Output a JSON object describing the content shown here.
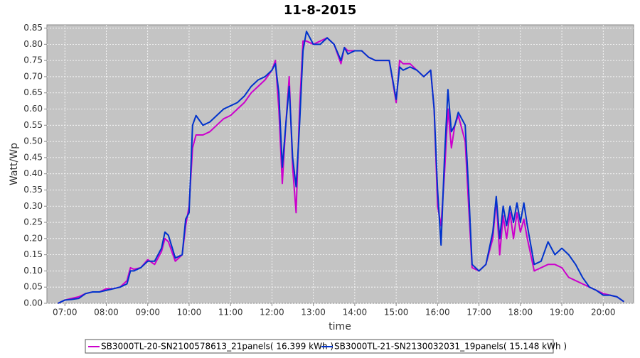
{
  "chart_data": {
    "type": "line",
    "title": "11-8-2015",
    "x_label": "time",
    "y_label": "Watt/Wp",
    "x": [
      "06:50",
      "07:00",
      "07:10",
      "07:20",
      "07:30",
      "07:40",
      "07:50",
      "08:00",
      "08:10",
      "08:20",
      "08:30",
      "08:35",
      "08:40",
      "08:50",
      "09:00",
      "09:10",
      "09:20",
      "09:25",
      "09:30",
      "09:40",
      "09:50",
      "09:55",
      "10:00",
      "10:05",
      "10:10",
      "10:20",
      "10:30",
      "10:40",
      "10:50",
      "11:00",
      "11:10",
      "11:20",
      "11:30",
      "11:40",
      "11:50",
      "12:00",
      "12:05",
      "12:10",
      "12:15",
      "12:20",
      "12:25",
      "12:30",
      "12:35",
      "12:40",
      "12:45",
      "12:50",
      "13:00",
      "13:10",
      "13:20",
      "13:30",
      "13:40",
      "13:45",
      "13:50",
      "14:00",
      "14:10",
      "14:20",
      "14:30",
      "14:40",
      "14:50",
      "15:00",
      "15:05",
      "15:10",
      "15:20",
      "15:30",
      "15:40",
      "15:50",
      "15:55",
      "16:00",
      "16:05",
      "16:10",
      "16:15",
      "16:20",
      "16:25",
      "16:30",
      "16:40",
      "16:45",
      "16:50",
      "17:00",
      "17:10",
      "17:20",
      "17:25",
      "17:30",
      "17:35",
      "17:40",
      "17:45",
      "17:50",
      "17:55",
      "18:00",
      "18:05",
      "18:10",
      "18:20",
      "18:30",
      "18:40",
      "18:50",
      "19:00",
      "19:10",
      "19:20",
      "19:30",
      "19:40",
      "19:50",
      "20:00",
      "20:10",
      "20:20",
      "20:30"
    ],
    "series": [
      {
        "name": "SB3000TL-20-SN2100578613_21panels( 16.399 kWh )",
        "color": "#cc00cc",
        "values": [
          0,
          0.01,
          0.015,
          0.02,
          0.03,
          0.035,
          0.035,
          0.045,
          0.045,
          0.05,
          0.07,
          0.11,
          0.105,
          0.11,
          0.135,
          0.12,
          0.16,
          0.2,
          0.19,
          0.13,
          0.15,
          0.24,
          0.3,
          0.48,
          0.52,
          0.52,
          0.53,
          0.55,
          0.57,
          0.58,
          0.6,
          0.62,
          0.65,
          0.67,
          0.69,
          0.72,
          0.75,
          0.6,
          0.37,
          0.55,
          0.7,
          0.42,
          0.28,
          0.6,
          0.81,
          0.81,
          0.8,
          0.81,
          0.82,
          0.8,
          0.74,
          0.79,
          0.78,
          0.78,
          0.78,
          0.76,
          0.75,
          0.75,
          0.75,
          0.62,
          0.75,
          0.74,
          0.74,
          0.72,
          0.7,
          0.72,
          0.6,
          0.3,
          0.24,
          0.4,
          0.6,
          0.48,
          0.55,
          0.58,
          0.5,
          0.3,
          0.11,
          0.1,
          0.12,
          0.2,
          0.32,
          0.15,
          0.27,
          0.2,
          0.28,
          0.2,
          0.28,
          0.22,
          0.26,
          0.2,
          0.1,
          0.11,
          0.12,
          0.12,
          0.11,
          0.08,
          0.07,
          0.06,
          0.05,
          0.04,
          0.03,
          0.025,
          0.02,
          0.005
        ]
      },
      {
        "name": "SB3000TL-21-SN2130032031_19panels( 15.148 kWh )",
        "color": "#0033cc",
        "values": [
          0,
          0.01,
          0.012,
          0.015,
          0.03,
          0.035,
          0.035,
          0.04,
          0.045,
          0.05,
          0.06,
          0.1,
          0.1,
          0.11,
          0.13,
          0.13,
          0.17,
          0.22,
          0.21,
          0.14,
          0.15,
          0.26,
          0.28,
          0.55,
          0.58,
          0.55,
          0.56,
          0.58,
          0.6,
          0.61,
          0.62,
          0.64,
          0.67,
          0.69,
          0.7,
          0.72,
          0.74,
          0.65,
          0.42,
          0.55,
          0.67,
          0.45,
          0.36,
          0.55,
          0.78,
          0.84,
          0.8,
          0.8,
          0.82,
          0.8,
          0.75,
          0.79,
          0.77,
          0.78,
          0.78,
          0.76,
          0.75,
          0.75,
          0.75,
          0.63,
          0.73,
          0.72,
          0.73,
          0.72,
          0.7,
          0.72,
          0.6,
          0.35,
          0.18,
          0.45,
          0.66,
          0.53,
          0.55,
          0.59,
          0.55,
          0.35,
          0.12,
          0.1,
          0.12,
          0.22,
          0.33,
          0.2,
          0.3,
          0.24,
          0.3,
          0.25,
          0.31,
          0.25,
          0.31,
          0.24,
          0.12,
          0.13,
          0.19,
          0.15,
          0.17,
          0.15,
          0.12,
          0.08,
          0.05,
          0.04,
          0.025,
          0.025,
          0.02,
          0.005
        ]
      }
    ],
    "xlim": [
      "06:34",
      "20:44"
    ],
    "xticks": [
      "07:00",
      "08:00",
      "09:00",
      "10:00",
      "11:00",
      "12:00",
      "13:00",
      "14:00",
      "15:00",
      "16:00",
      "17:00",
      "18:00",
      "19:00",
      "20:00"
    ],
    "ylim": [
      0,
      0.86
    ],
    "yticks": [
      {
        "value": 0,
        "label": "0.00"
      },
      {
        "value": 0.05,
        "label": "0.05"
      },
      {
        "value": 0.1,
        "label": "0.10"
      },
      {
        "value": 0.15,
        "label": "0.15"
      },
      {
        "value": 0.2,
        "label": "0.20"
      },
      {
        "value": 0.25,
        "label": "0.25"
      },
      {
        "value": 0.3,
        "label": "0.30"
      },
      {
        "value": 0.35,
        "label": "0.35"
      },
      {
        "value": 0.4,
        "label": "0.40"
      },
      {
        "value": 0.45,
        "label": "0.45"
      },
      {
        "value": 0.5,
        "label": "0.50"
      },
      {
        "value": 0.55,
        "label": "0.55"
      },
      {
        "value": 0.6,
        "label": "0.60"
      },
      {
        "value": 0.65,
        "label": "0.65"
      },
      {
        "value": 0.7,
        "label": "0.70"
      },
      {
        "value": 0.75,
        "label": "0.75"
      },
      {
        "value": 0.8,
        "label": "0.80"
      },
      {
        "value": 0.85,
        "label": "0.85"
      }
    ],
    "grid": true,
    "legend": "bottom"
  }
}
